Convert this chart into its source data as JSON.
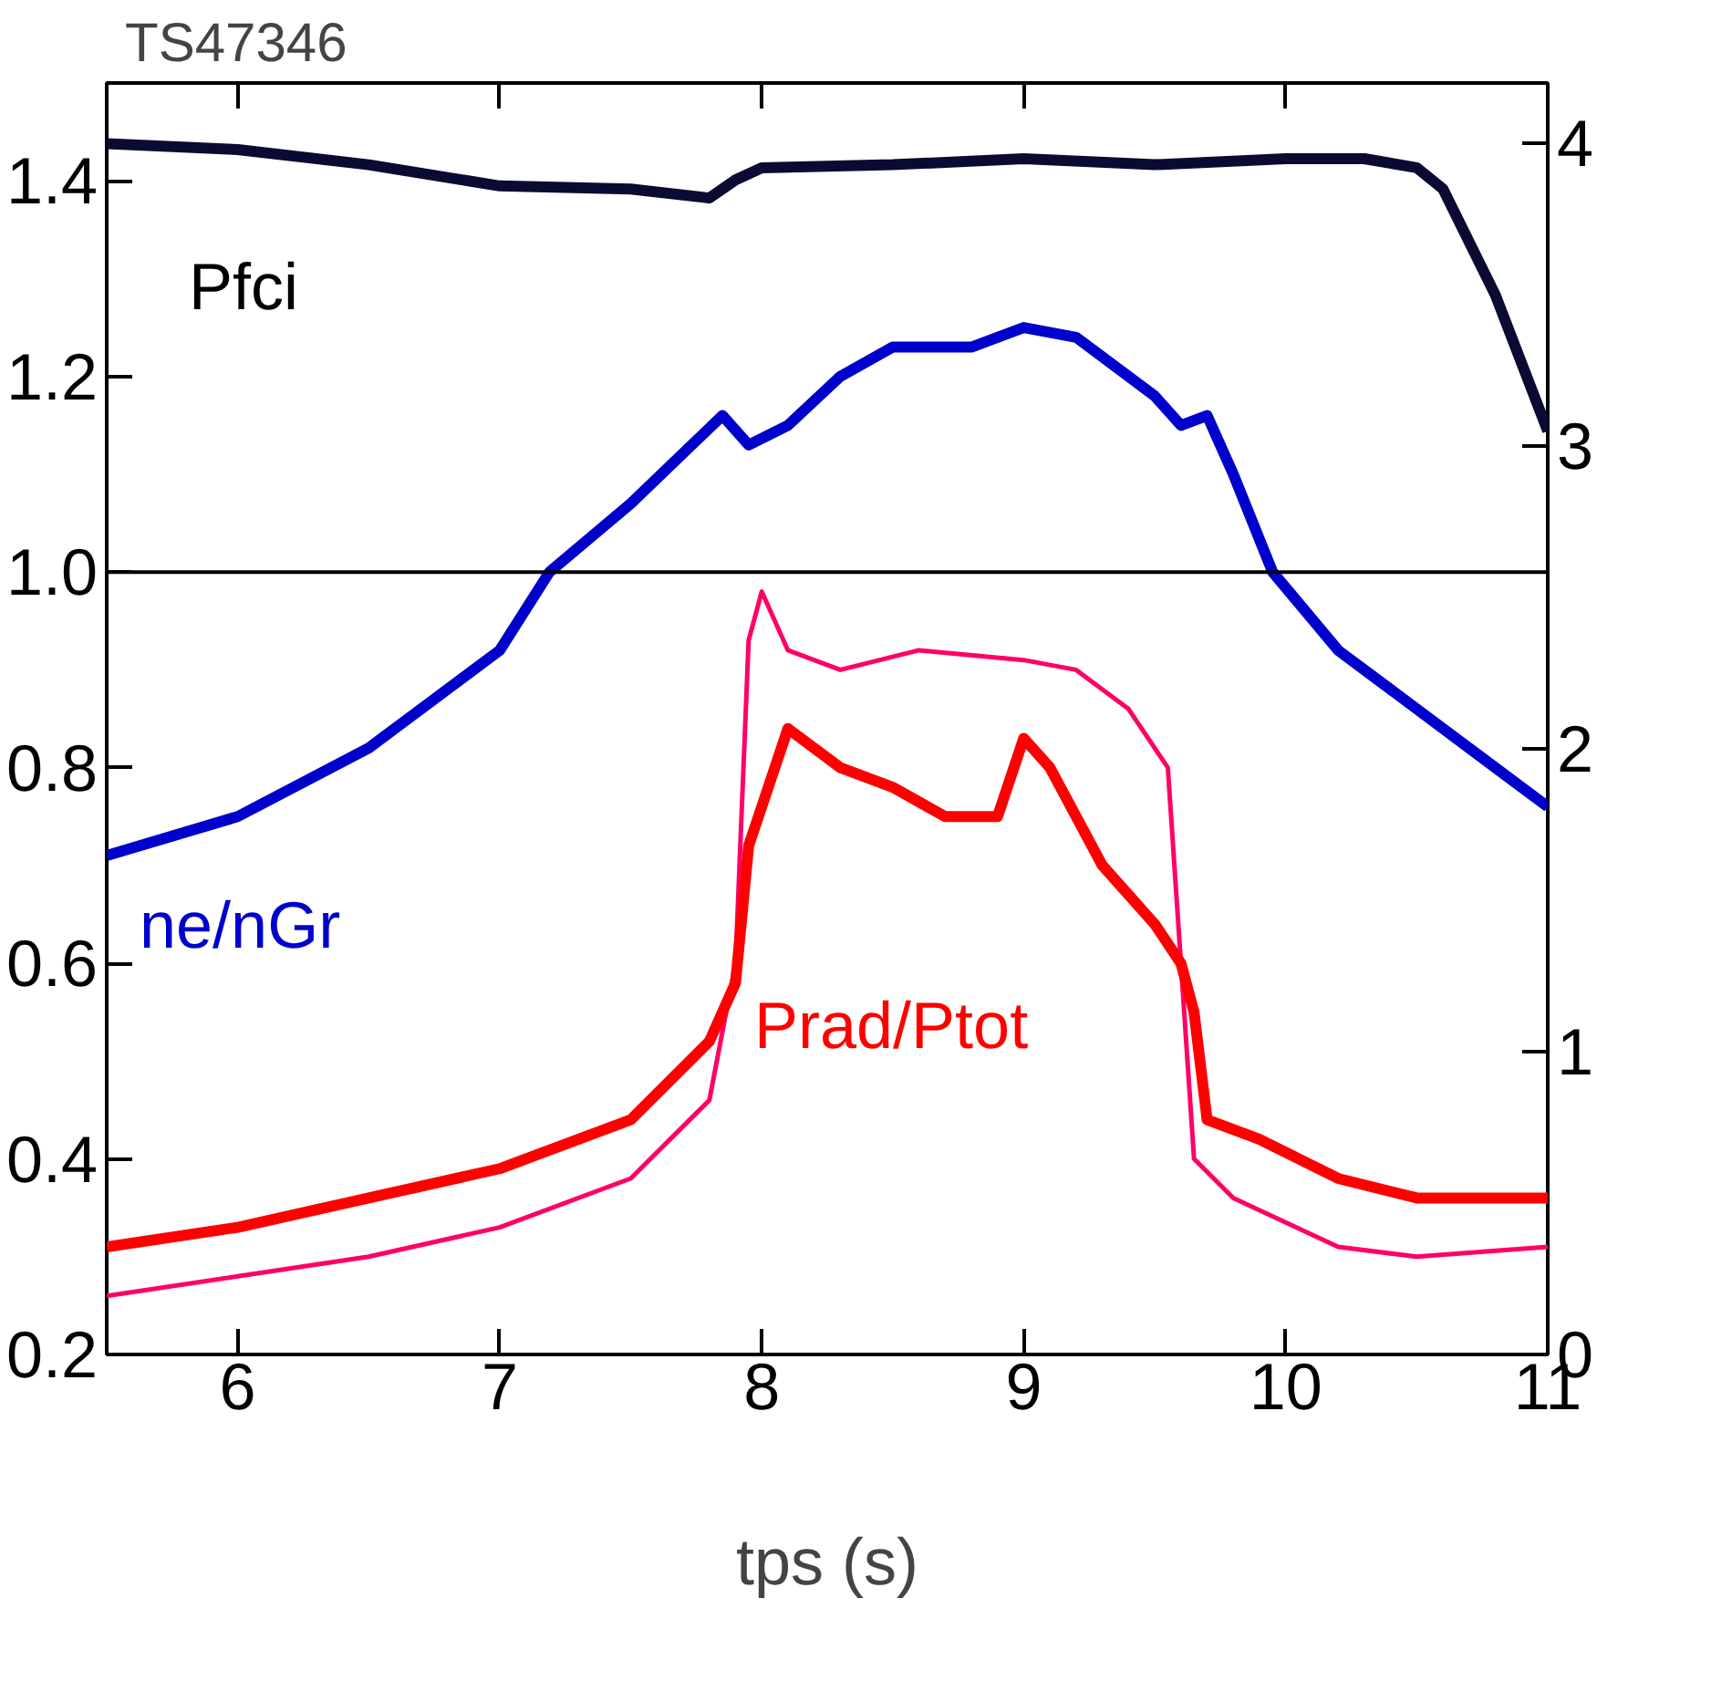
{
  "chart_data": {
    "type": "line",
    "title": "TS47346",
    "xlabel": "tps (s)",
    "xlim": [
      5.5,
      11
    ],
    "xticks": [
      6,
      7,
      8,
      9,
      10,
      11
    ],
    "ylim": [
      0.2,
      1.5
    ],
    "yticks": [
      0.2,
      0.4,
      0.6,
      0.8,
      {
        "value": 1.0,
        "label": "1.0"
      },
      1.2,
      1.4
    ],
    "y2lim": [
      0,
      4.2
    ],
    "y2ticks": [
      0,
      1,
      2,
      3,
      4
    ],
    "grid": false,
    "legend": false,
    "marker": "none",
    "line_style": "solid",
    "ref_lines": [
      {
        "axis": "y",
        "value": 1.0,
        "color": "#000000"
      }
    ],
    "series": [
      {
        "name": "Pfci",
        "color": "#0a0a33",
        "axis": "y2",
        "x": [
          5.5,
          6.0,
          6.5,
          7.0,
          7.5,
          7.8,
          7.9,
          8.0,
          8.5,
          9.0,
          9.5,
          10.0,
          10.3,
          10.5,
          10.6,
          10.8,
          11.0
        ],
        "values": [
          4.0,
          3.98,
          3.93,
          3.86,
          3.85,
          3.82,
          3.88,
          3.92,
          3.93,
          3.95,
          3.93,
          3.95,
          3.95,
          3.92,
          3.85,
          3.5,
          3.05
        ]
      },
      {
        "name": "ne/nGr",
        "color": "#0000cc",
        "x": [
          5.5,
          6.0,
          6.5,
          7.0,
          7.19,
          7.5,
          7.85,
          7.95,
          8.1,
          8.3,
          8.5,
          8.8,
          9.0,
          9.2,
          9.5,
          9.6,
          9.7,
          9.8,
          9.95,
          10.2,
          10.5,
          10.8,
          11.0
        ],
        "values": [
          0.71,
          0.75,
          0.82,
          0.92,
          1.0,
          1.07,
          1.16,
          1.13,
          1.15,
          1.2,
          1.23,
          1.23,
          1.25,
          1.24,
          1.18,
          1.15,
          1.16,
          1.1,
          1.0,
          0.92,
          0.86,
          0.8,
          0.76
        ]
      },
      {
        "color": "#ff0066",
        "x": [
          5.5,
          6.0,
          6.5,
          7.0,
          7.5,
          7.8,
          7.9,
          7.95,
          8.0,
          8.1,
          8.3,
          8.6,
          9.0,
          9.2,
          9.4,
          9.55,
          9.6,
          9.65,
          9.8,
          10.2,
          10.5,
          11.0
        ],
        "values": [
          0.26,
          0.28,
          0.3,
          0.33,
          0.38,
          0.46,
          0.6,
          0.93,
          0.98,
          0.92,
          0.9,
          0.92,
          0.91,
          0.9,
          0.86,
          0.8,
          0.6,
          0.4,
          0.36,
          0.31,
          0.3,
          0.31
        ]
      },
      {
        "name": "Prad/Ptot",
        "color": "#ff0000",
        "x": [
          5.5,
          6.0,
          6.5,
          7.0,
          7.5,
          7.8,
          7.9,
          7.95,
          8.05,
          8.1,
          8.3,
          8.5,
          8.7,
          8.9,
          9.0,
          9.1,
          9.3,
          9.5,
          9.6,
          9.65,
          9.7,
          9.9,
          10.2,
          10.5,
          11.0
        ],
        "values": [
          0.31,
          0.33,
          0.36,
          0.39,
          0.44,
          0.52,
          0.58,
          0.72,
          0.8,
          0.84,
          0.8,
          0.78,
          0.75,
          0.75,
          0.83,
          0.8,
          0.7,
          0.64,
          0.6,
          0.55,
          0.44,
          0.42,
          0.38,
          0.36,
          0.36
        ]
      }
    ]
  }
}
